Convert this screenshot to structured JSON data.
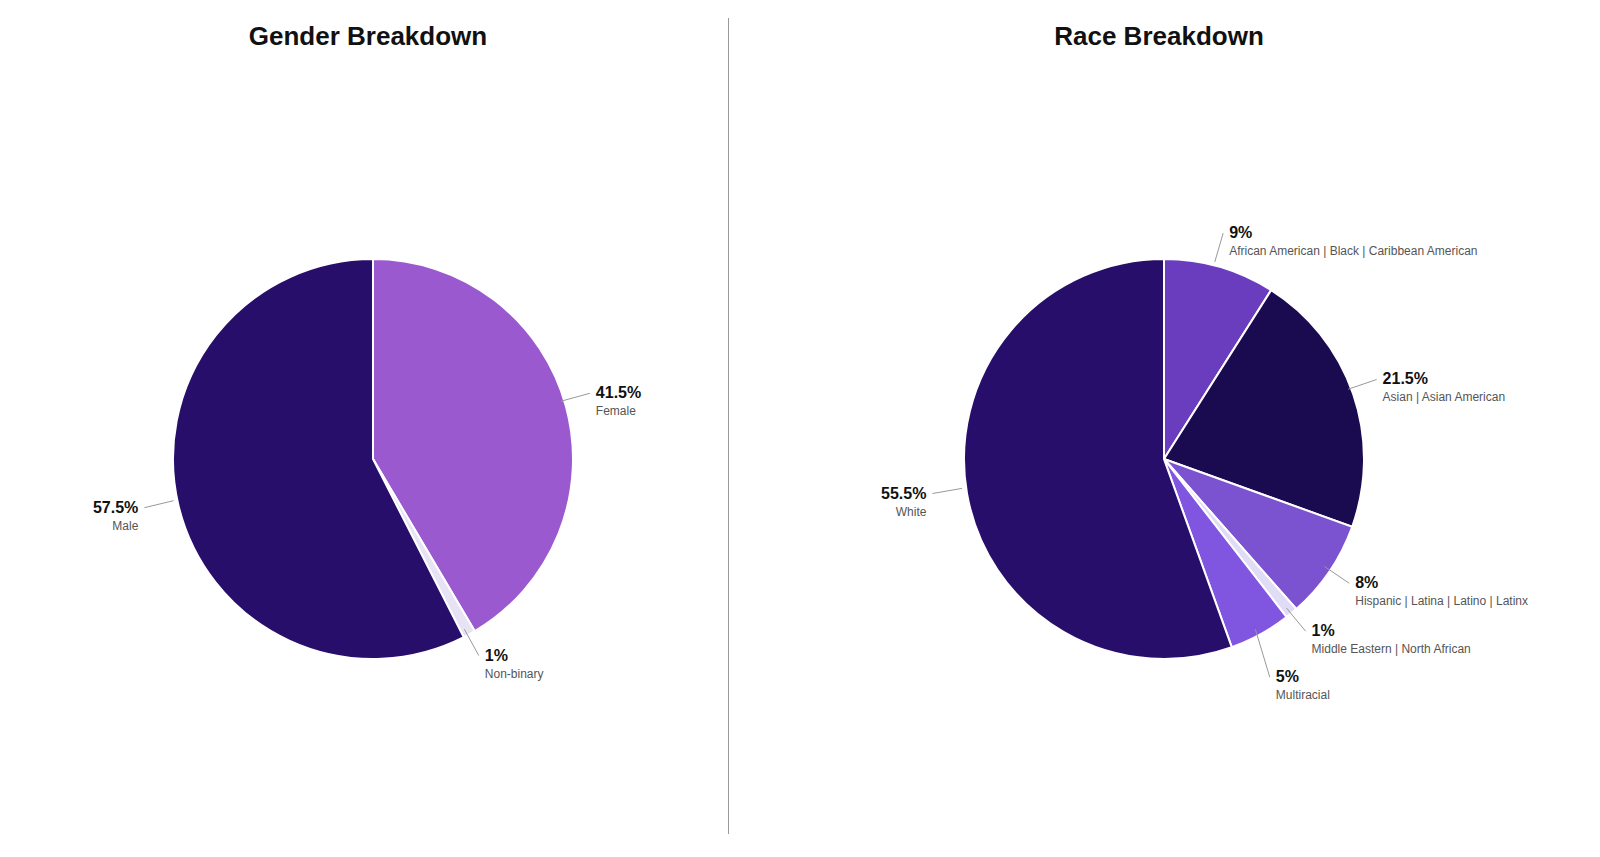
{
  "chart_data": [
    {
      "type": "pie",
      "title": "Gender Breakdown",
      "categories": [
        "Female",
        "Non-binary",
        "Male"
      ],
      "values": [
        41.5,
        1.0,
        57.5
      ],
      "value_labels": [
        "41.5%",
        "1%",
        "57.5%"
      ],
      "colors": [
        "#9B59D0",
        "#E8E2F5",
        "#270E6A"
      ],
      "data_labels": true
    },
    {
      "type": "pie",
      "title": "Race Breakdown",
      "categories": [
        "African American | Black | Caribbean American",
        "Asian | Asian American",
        "Hispanic | Latina | Latino | Latinx",
        "Middle Eastern | North African",
        "Multiracial",
        "White"
      ],
      "values": [
        9.0,
        21.5,
        8.0,
        1.0,
        5.0,
        55.5
      ],
      "value_labels": [
        "9%",
        "21.5%",
        "8%",
        "1%",
        "5%",
        "55.5%"
      ],
      "colors": [
        "#6A3DBF",
        "#1A0A50",
        "#7B52D0",
        "#E0DCF5",
        "#8055E0",
        "#270E6A"
      ],
      "data_labels": true
    }
  ]
}
